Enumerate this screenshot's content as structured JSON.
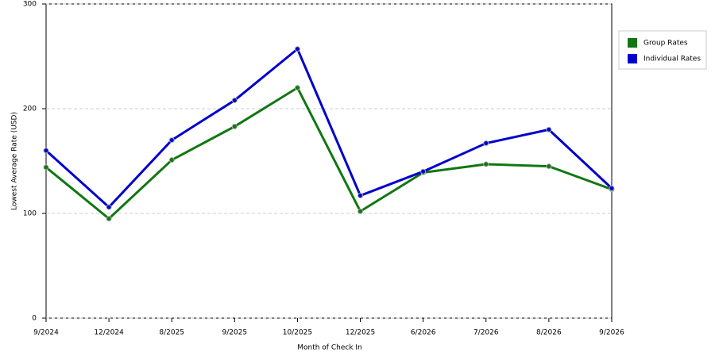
{
  "chart_data": {
    "type": "line",
    "x_label": "Month of Check In",
    "y_label": "Lowest Average Rate (USD)",
    "categories": [
      "9/2024",
      "12/2024",
      "8/2025",
      "9/2025",
      "10/2025",
      "12/2025",
      "6/2026",
      "7/2026",
      "8/2026",
      "9/2026"
    ],
    "series": [
      {
        "name": "Group Rates",
        "color": "#117711",
        "values": [
          144,
          95,
          151,
          183,
          220,
          102,
          139,
          147,
          145,
          123
        ]
      },
      {
        "name": "Individual Rates",
        "color": "#0000cc",
        "values": [
          160,
          106,
          170,
          208,
          257,
          117,
          140,
          167,
          180,
          124
        ]
      }
    ],
    "ylim": [
      0,
      300
    ],
    "yticks": [
      0,
      100,
      200,
      300
    ],
    "grid": true,
    "legend": "right"
  }
}
